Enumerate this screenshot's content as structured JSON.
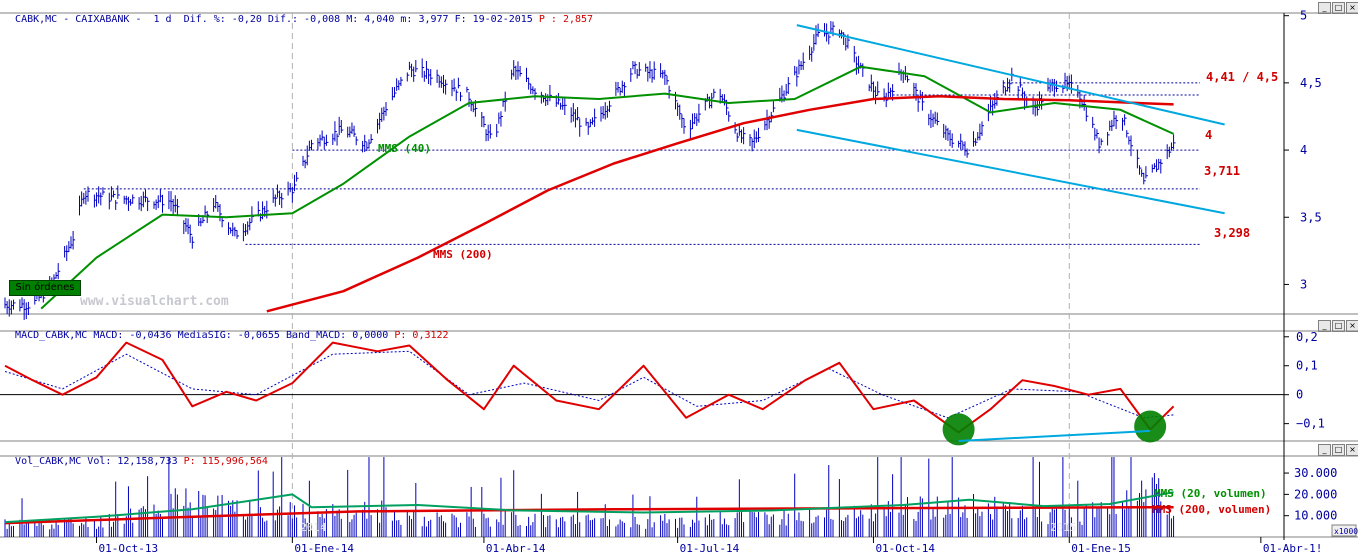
{
  "price_panel": {
    "title_ticker": "CABK,MC - CAIXABANK -  1 d",
    "title_stats": "Dif. %: -0,20 Dif.: -0,008 M: 4,040 m: 3,977 F: 19-02-2015",
    "title_p": "P : 2,857",
    "watermark": "www.visualchart.com",
    "button_label": "Sin órdenes",
    "labels": {
      "mms40": "MMS (40)",
      "mms200": "MMS (200)",
      "level_1": "4,41 / 4,5",
      "level_2": "4",
      "level_3": "3,711",
      "level_4": "3,298"
    }
  },
  "macd_panel": {
    "title": "MACD_CABK,MC MACD: -0,0436 MediaSIG: -0,0655 Band_MACD: 0,0000",
    "title_p": "P: 0,3122"
  },
  "volume_panel": {
    "title": "Vol_CABK,MC Vol: 12,158,733",
    "title_p": "P: 115,996,564",
    "labels": {
      "mms20v": "MMS (20, volumen)",
      "mms200v": "MMS (200, volumen)"
    },
    "unit": "x1000",
    "year_labels": [
      "2014",
      "2015"
    ]
  },
  "x_axis": {
    "ticks": [
      "01-Oct-13",
      "01-Ene-14",
      "01-Abr-14",
      "01-Jul-14",
      "01-Oct-14",
      "01-Ene-15",
      "01-Abr-1!"
    ]
  },
  "colors": {
    "bars": "#0000c0",
    "mms40": "#009000",
    "mms200": "#e00000",
    "channel": "#00a8e0",
    "macd": "#e00000",
    "signal": "#0000c0",
    "highlight": "#008000"
  },
  "chart_data": [
    {
      "type": "line",
      "title": "CABK,MC - CAIXABANK - 1 d",
      "y_ticks": [
        3,
        3.5,
        4,
        4.5,
        5
      ],
      "ylim": [
        2.78,
        5.02
      ],
      "x_range": [
        "2013-08-19",
        "2015-04-10"
      ],
      "horizontal_levels": [
        4.5,
        4.41,
        4.0,
        3.711,
        3.298
      ],
      "channel": {
        "upper": [
          [
            "2014-08-26",
            4.93
          ],
          [
            "2015-03-15",
            4.19
          ]
        ],
        "lower": [
          [
            "2014-08-26",
            4.15
          ],
          [
            "2015-03-15",
            3.53
          ]
        ]
      },
      "series": [
        {
          "name": "CABK,MC",
          "style": "ohlc",
          "points": [
            [
              "2013-08-19",
              2.85
            ],
            [
              "2013-09-01",
              2.85
            ],
            [
              "2013-09-10",
              3.0
            ],
            [
              "2013-09-20",
              3.35
            ],
            [
              "2013-09-25",
              3.68
            ],
            [
              "2013-10-10",
              3.64
            ],
            [
              "2013-10-25",
              3.63
            ],
            [
              "2013-11-05",
              3.62
            ],
            [
              "2013-11-15",
              3.35
            ],
            [
              "2013-11-25",
              3.6
            ],
            [
              "2013-12-05",
              3.37
            ],
            [
              "2013-12-15",
              3.5
            ],
            [
              "2013-12-25",
              3.65
            ],
            [
              "2014-01-02",
              3.72
            ],
            [
              "2014-01-10",
              4.05
            ],
            [
              "2014-01-25",
              4.15
            ],
            [
              "2014-02-05",
              4.05
            ],
            [
              "2014-02-15",
              4.35
            ],
            [
              "2014-02-25",
              4.6
            ],
            [
              "2014-03-10",
              4.55
            ],
            [
              "2014-03-25",
              4.4
            ],
            [
              "2014-04-05",
              4.05
            ],
            [
              "2014-04-15",
              4.6
            ],
            [
              "2014-04-25",
              4.45
            ],
            [
              "2014-05-10",
              4.3
            ],
            [
              "2014-05-20",
              4.15
            ],
            [
              "2014-06-01",
              4.4
            ],
            [
              "2014-06-10",
              4.6
            ],
            [
              "2014-06-25",
              4.55
            ],
            [
              "2014-07-05",
              4.15
            ],
            [
              "2014-07-20",
              4.45
            ],
            [
              "2014-07-30",
              4.1
            ],
            [
              "2014-08-05",
              4.05
            ],
            [
              "2014-08-15",
              4.3
            ],
            [
              "2014-08-25",
              4.55
            ],
            [
              "2014-09-05",
              4.85
            ],
            [
              "2014-09-15",
              4.9
            ],
            [
              "2014-09-25",
              4.6
            ],
            [
              "2014-10-05",
              4.35
            ],
            [
              "2014-10-15",
              4.6
            ],
            [
              "2014-10-25",
              4.3
            ],
            [
              "2014-11-05",
              4.1
            ],
            [
              "2014-11-15",
              4.0
            ],
            [
              "2014-11-25",
              4.3
            ],
            [
              "2014-12-05",
              4.55
            ],
            [
              "2014-12-15",
              4.3
            ],
            [
              "2014-12-25",
              4.5
            ],
            [
              "2015-01-05",
              4.45
            ],
            [
              "2015-01-15",
              4.05
            ],
            [
              "2015-01-25",
              4.3
            ],
            [
              "2015-02-05",
              3.75
            ],
            [
              "2015-02-12",
              3.9
            ],
            [
              "2015-02-19",
              4.04
            ]
          ]
        },
        {
          "name": "MMS (40)",
          "points": [
            [
              "2013-09-05",
              2.82
            ],
            [
              "2013-10-01",
              3.2
            ],
            [
              "2013-11-01",
              3.52
            ],
            [
              "2013-12-01",
              3.5
            ],
            [
              "2014-01-01",
              3.53
            ],
            [
              "2014-01-25",
              3.75
            ],
            [
              "2014-02-25",
              4.1
            ],
            [
              "2014-03-25",
              4.35
            ],
            [
              "2014-04-25",
              4.4
            ],
            [
              "2014-05-25",
              4.38
            ],
            [
              "2014-06-25",
              4.42
            ],
            [
              "2014-07-25",
              4.35
            ],
            [
              "2014-08-25",
              4.38
            ],
            [
              "2014-09-25",
              4.62
            ],
            [
              "2014-10-25",
              4.55
            ],
            [
              "2014-11-25",
              4.28
            ],
            [
              "2014-12-25",
              4.35
            ],
            [
              "2015-01-25",
              4.3
            ],
            [
              "2015-02-19",
              4.12
            ]
          ]
        },
        {
          "name": "MMS (200)",
          "points": [
            [
              "2013-12-20",
              2.8
            ],
            [
              "2014-01-25",
              2.95
            ],
            [
              "2014-03-01",
              3.2
            ],
            [
              "2014-04-01",
              3.45
            ],
            [
              "2014-05-01",
              3.7
            ],
            [
              "2014-06-01",
              3.9
            ],
            [
              "2014-07-01",
              4.05
            ],
            [
              "2014-08-01",
              4.2
            ],
            [
              "2014-09-01",
              4.3
            ],
            [
              "2014-10-01",
              4.38
            ],
            [
              "2014-11-01",
              4.4
            ],
            [
              "2014-12-01",
              4.38
            ],
            [
              "2015-01-01",
              4.37
            ],
            [
              "2015-02-19",
              4.34
            ]
          ]
        }
      ]
    },
    {
      "type": "line",
      "title": "MACD_CABK,MC",
      "y_ticks": [
        -0.1,
        0,
        0.1,
        0.2
      ],
      "ylim": [
        -0.16,
        0.22
      ],
      "series": [
        {
          "name": "MACD",
          "points": [
            [
              "2013-08-19",
              0.1
            ],
            [
              "2013-09-01",
              0.05
            ],
            [
              "2013-09-15",
              0.0
            ],
            [
              "2013-10-01",
              0.06
            ],
            [
              "2013-10-15",
              0.18
            ],
            [
              "2013-11-01",
              0.12
            ],
            [
              "2013-11-15",
              -0.04
            ],
            [
              "2013-12-01",
              0.01
            ],
            [
              "2013-12-15",
              -0.02
            ],
            [
              "2014-01-01",
              0.04
            ],
            [
              "2014-01-20",
              0.18
            ],
            [
              "2014-02-10",
              0.15
            ],
            [
              "2014-02-25",
              0.17
            ],
            [
              "2014-03-15",
              0.05
            ],
            [
              "2014-04-01",
              -0.05
            ],
            [
              "2014-04-15",
              0.1
            ],
            [
              "2014-05-05",
              -0.02
            ],
            [
              "2014-05-25",
              -0.05
            ],
            [
              "2014-06-15",
              0.1
            ],
            [
              "2014-07-05",
              -0.08
            ],
            [
              "2014-07-25",
              0.0
            ],
            [
              "2014-08-10",
              -0.05
            ],
            [
              "2014-08-30",
              0.05
            ],
            [
              "2014-09-15",
              0.11
            ],
            [
              "2014-10-01",
              -0.05
            ],
            [
              "2014-10-20",
              -0.02
            ],
            [
              "2014-11-10",
              -0.13
            ],
            [
              "2014-11-25",
              -0.05
            ],
            [
              "2014-12-10",
              0.05
            ],
            [
              "2014-12-25",
              0.03
            ],
            [
              "2015-01-10",
              0.0
            ],
            [
              "2015-01-25",
              0.02
            ],
            [
              "2015-02-08",
              -0.12
            ],
            [
              "2015-02-19",
              -0.04
            ]
          ]
        },
        {
          "name": "MediaSIG",
          "points": [
            [
              "2013-08-19",
              0.08
            ],
            [
              "2013-09-15",
              0.02
            ],
            [
              "2013-10-15",
              0.14
            ],
            [
              "2013-11-15",
              0.02
            ],
            [
              "2013-12-15",
              0.0
            ],
            [
              "2014-01-20",
              0.14
            ],
            [
              "2014-02-25",
              0.15
            ],
            [
              "2014-03-25",
              0.0
            ],
            [
              "2014-04-20",
              0.04
            ],
            [
              "2014-05-25",
              -0.02
            ],
            [
              "2014-06-15",
              0.06
            ],
            [
              "2014-07-10",
              -0.04
            ],
            [
              "2014-08-10",
              -0.02
            ],
            [
              "2014-09-10",
              0.09
            ],
            [
              "2014-10-05",
              0.0
            ],
            [
              "2014-11-05",
              -0.08
            ],
            [
              "2014-12-05",
              0.02
            ],
            [
              "2015-01-05",
              0.01
            ],
            [
              "2015-02-05",
              -0.08
            ],
            [
              "2015-02-19",
              -0.07
            ]
          ]
        }
      ]
    },
    {
      "type": "bar",
      "title": "Vol_CABK,MC",
      "y_ticks": [
        10000,
        20000,
        30000
      ],
      "unit": "x1000",
      "ylim": [
        0,
        38000
      ],
      "series": [
        {
          "name": "Vol",
          "style": "bars",
          "points": [
            [
              "2013-08-19",
              8000
            ],
            [
              "2013-10-01",
              9000
            ],
            [
              "2013-11-10",
              22000
            ],
            [
              "2013-12-10",
              18000
            ],
            [
              "2014-01-10",
              14000
            ],
            [
              "2014-02-10",
              16000
            ],
            [
              "2014-03-10",
              11000
            ],
            [
              "2014-04-10",
              12000
            ],
            [
              "2014-05-10",
              10000
            ],
            [
              "2014-06-10",
              9000
            ],
            [
              "2014-07-10",
              11000
            ],
            [
              "2014-08-10",
              12000
            ],
            [
              "2014-09-10",
              13000
            ],
            [
              "2014-10-10",
              17000
            ],
            [
              "2014-11-10",
              20000
            ],
            [
              "2014-12-10",
              15000
            ],
            [
              "2015-01-10",
              14000
            ],
            [
              "2015-02-10",
              30000
            ],
            [
              "2015-02-19",
              12158
            ]
          ]
        },
        {
          "name": "MMS (20, volumen)",
          "points": [
            [
              "2013-08-19",
              7000
            ],
            [
              "2013-10-01",
              9500
            ],
            [
              "2013-11-15",
              13000
            ],
            [
              "2014-01-01",
              20000
            ],
            [
              "2014-01-10",
              14000
            ],
            [
              "2014-03-01",
              15000
            ],
            [
              "2014-04-15",
              12500
            ],
            [
              "2014-06-15",
              11500
            ],
            [
              "2014-08-15",
              12500
            ],
            [
              "2014-10-15",
              15000
            ],
            [
              "2014-11-15",
              17500
            ],
            [
              "2014-12-20",
              14500
            ],
            [
              "2015-01-20",
              15500
            ],
            [
              "2015-02-19",
              21000
            ]
          ]
        },
        {
          "name": "MMS (200, volumen)",
          "points": [
            [
              "2013-08-19",
              6500
            ],
            [
              "2013-11-01",
              9000
            ],
            [
              "2014-02-01",
              12000
            ],
            [
              "2014-06-01",
              13000
            ],
            [
              "2014-10-01",
              13500
            ],
            [
              "2015-02-19",
              14000
            ]
          ]
        }
      ]
    }
  ]
}
